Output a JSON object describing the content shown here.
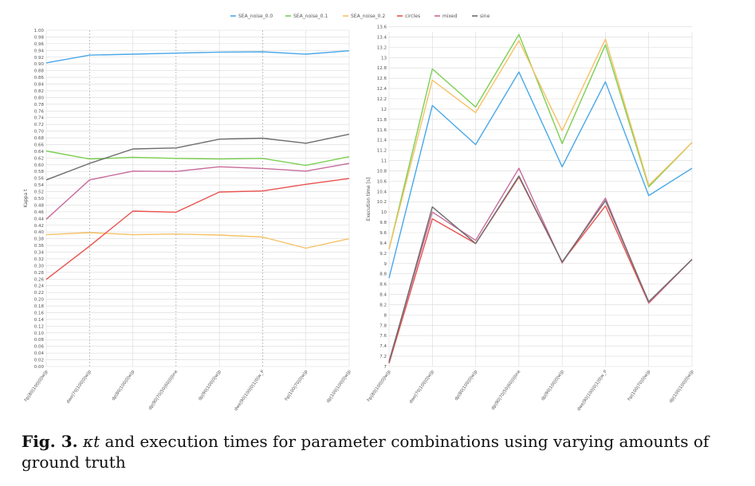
{
  "figure": {
    "caption_label": "Fig. 3.",
    "caption_symbol": "κt",
    "caption_text": " and execution times for parameter combinations using varying amounts of ground truth"
  },
  "chart_data": [
    {
      "type": "line",
      "title": "",
      "xlabel": "",
      "ylabel": "Kappa t",
      "ylim": [
        0,
        1
      ],
      "ytick_step": 0.02,
      "ytick_decimals": 2,
      "grid": true,
      "categories": [
        "hp|80|100|0|lw|p",
        "dwe|70|100|0|w|p",
        "dp|80|100|0|w|p",
        "dp|90|70|50|60|0|line",
        "dp|90|100|0|w|p",
        "dwe|90|100|0|1|0|w_P",
        "hp|100|70|0|w|p",
        "dp|100|100|0|w|p"
      ],
      "series": [
        {
          "name": "SEA_noise_0.0",
          "color": "#4aa8e8",
          "values": [
            0.903,
            0.926,
            0.929,
            0.932,
            0.935,
            0.936,
            0.929,
            0.939
          ]
        },
        {
          "name": "SEA_noise_0.1",
          "color": "#7ccf52",
          "values": [
            0.641,
            0.617,
            0.622,
            0.619,
            0.617,
            0.619,
            0.598,
            0.624
          ]
        },
        {
          "name": "SEA_noise_0.2",
          "color": "#f5c266",
          "values": [
            0.392,
            0.398,
            0.392,
            0.394,
            0.391,
            0.385,
            0.352,
            0.38
          ]
        },
        {
          "name": "circles",
          "color": "#e8524e",
          "values": [
            0.259,
            0.358,
            0.462,
            0.459,
            0.519,
            0.522,
            0.542,
            0.559
          ]
        },
        {
          "name": "mixed",
          "color": "#c86b9b",
          "values": [
            0.438,
            0.555,
            0.581,
            0.58,
            0.594,
            0.589,
            0.581,
            0.604
          ]
        },
        {
          "name": "sine",
          "color": "#6d6d6d",
          "values": [
            0.555,
            0.604,
            0.647,
            0.65,
            0.676,
            0.679,
            0.664,
            0.691
          ]
        }
      ]
    },
    {
      "type": "line",
      "title": "",
      "xlabel": "",
      "ylabel": "Execution time [s]",
      "ylim": [
        7,
        13.5
      ],
      "ytick_step": 0.2,
      "ytick_decimals": 1,
      "grid": true,
      "categories": [
        "hp|80|100|0|lw|p",
        "dwe|70|100|0|w|p",
        "dp|80|100|0|w|p",
        "dp|90|70|50|60|0|line",
        "dp|90|100|0|w|p",
        "dwe|90|100|0|1|0|w_P",
        "hp|100|70|0|w|p",
        "dp|100|100|0|w|p"
      ],
      "series": [
        {
          "name": "SEA_noise_0.0",
          "color": "#4aa8e8",
          "values": [
            8.72,
            12.07,
            11.31,
            12.72,
            10.88,
            12.53,
            10.32,
            10.85
          ]
        },
        {
          "name": "SEA_noise_0.1",
          "color": "#7ccf52",
          "values": [
            9.28,
            12.78,
            12.04,
            13.45,
            11.33,
            13.25,
            10.49,
            11.35
          ]
        },
        {
          "name": "SEA_noise_0.2",
          "color": "#f5c266",
          "values": [
            9.28,
            12.56,
            11.93,
            13.33,
            11.58,
            13.36,
            10.52,
            11.35
          ]
        },
        {
          "name": "circles",
          "color": "#e8524e",
          "values": [
            7.06,
            9.87,
            9.39,
            10.68,
            9.03,
            10.12,
            8.23,
            9.08
          ]
        },
        {
          "name": "mixed",
          "color": "#c86b9b",
          "values": [
            7.11,
            10.0,
            9.45,
            10.85,
            9.01,
            10.27,
            8.24,
            9.08
          ]
        },
        {
          "name": "sine",
          "color": "#6d6d6d",
          "values": [
            7.08,
            10.1,
            9.39,
            10.7,
            9.03,
            10.22,
            8.26,
            9.08
          ]
        }
      ]
    }
  ]
}
